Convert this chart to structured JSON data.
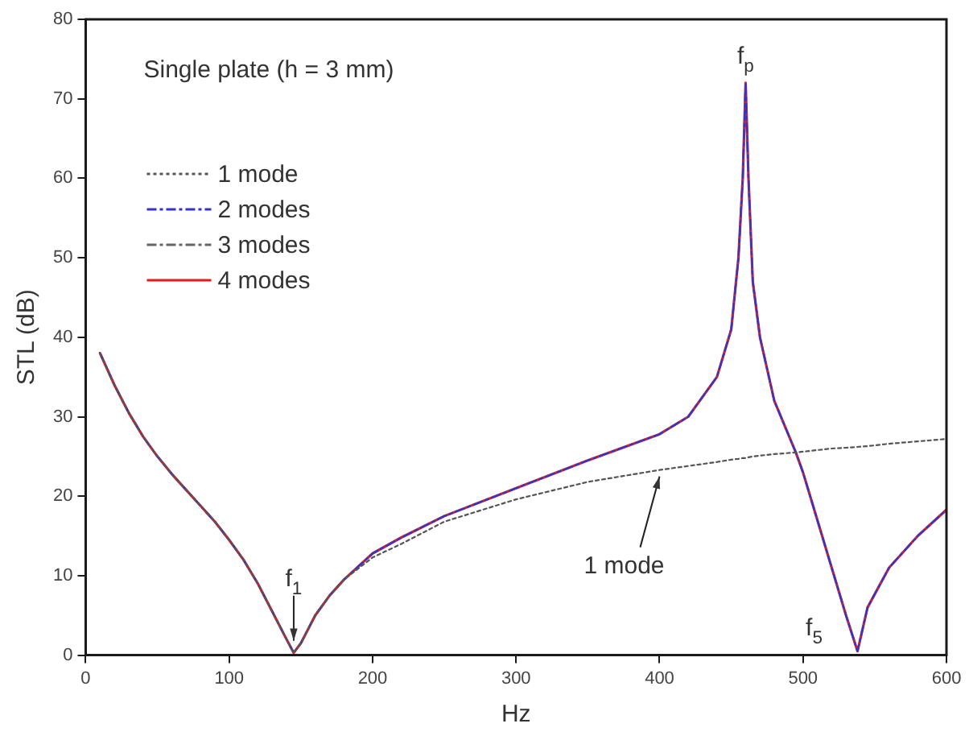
{
  "chart_data": {
    "type": "line",
    "xlabel": "Hz",
    "ylabel": "STL (dB)",
    "x": [
      10,
      20,
      30,
      40,
      50,
      60,
      70,
      80,
      90,
      100,
      110,
      120,
      130,
      140,
      145,
      150,
      160,
      170,
      180,
      200,
      220,
      250,
      300,
      350,
      400,
      420,
      440,
      450,
      455,
      458,
      460,
      462,
      465,
      470,
      480,
      495,
      500,
      510,
      520,
      530,
      538,
      545,
      560,
      580,
      600
    ],
    "series": [
      {
        "name": "1 mode",
        "color": "#555555",
        "line_style": "dotted",
        "values": [
          38,
          34,
          30.5,
          27.5,
          25,
          22.8,
          20.8,
          18.8,
          16.8,
          14.5,
          12,
          9,
          5.5,
          2,
          0.3,
          1.5,
          5,
          7.5,
          9.5,
          12.3,
          14,
          16.8,
          19.6,
          21.8,
          23.3,
          23.8,
          24.3,
          24.6,
          24.7,
          24.8,
          24.8,
          24.9,
          25,
          25.1,
          25.3,
          25.5,
          25.6,
          25.8,
          26,
          26.1,
          26.2,
          26.3,
          26.6,
          26.9,
          27.2
        ]
      },
      {
        "name": "2 modes",
        "color": "#3333cc",
        "line_style": "dashed",
        "values": [
          38,
          34,
          30.5,
          27.5,
          25,
          22.8,
          20.8,
          18.8,
          16.8,
          14.5,
          12,
          9,
          5.5,
          2,
          0.3,
          1.5,
          5,
          7.5,
          9.5,
          12.8,
          14.8,
          17.5,
          21,
          24.5,
          27.8,
          30,
          35,
          41,
          50,
          60,
          72,
          60,
          47,
          40,
          32,
          25.5,
          23,
          17,
          11,
          5,
          0.5,
          6,
          11,
          15,
          18.3
        ]
      },
      {
        "name": "3 modes",
        "color": "#666666",
        "line_style": "dashed",
        "values": [
          38,
          34,
          30.5,
          27.5,
          25,
          22.8,
          20.8,
          18.8,
          16.8,
          14.5,
          12,
          9,
          5.5,
          2,
          0.3,
          1.5,
          5,
          7.5,
          9.5,
          12.8,
          14.8,
          17.5,
          21,
          24.5,
          27.8,
          30,
          35,
          41,
          50,
          60,
          72,
          60,
          47,
          40,
          32,
          25.5,
          23,
          17,
          11,
          5,
          0.5,
          6,
          11,
          15,
          18.3
        ]
      },
      {
        "name": "4 modes",
        "color": "#e8191c",
        "line_style": "solid",
        "values": [
          38,
          34,
          30.5,
          27.5,
          25,
          22.8,
          20.8,
          18.8,
          16.8,
          14.5,
          12,
          9,
          5.5,
          2,
          0.3,
          1.5,
          5,
          7.5,
          9.5,
          12.8,
          14.8,
          17.5,
          21,
          24.5,
          27.8,
          30,
          35,
          41,
          50,
          60,
          72,
          60,
          47,
          40,
          32,
          25.5,
          23,
          17,
          11,
          5,
          0.5,
          6,
          11,
          15,
          18.3
        ]
      }
    ],
    "xlim": [
      0,
      600
    ],
    "xticks": [
      0,
      100,
      200,
      300,
      400,
      500,
      600
    ],
    "ylim": [
      0,
      80
    ],
    "yticks": [
      0,
      10,
      20,
      30,
      40,
      50,
      60,
      70,
      80
    ],
    "grid": false,
    "legend": "top left",
    "marker": "none",
    "annotations": [
      "Single plate (h = 3 mm)",
      {
        "text": "f$_{p}$",
        "x": 460,
        "y": 72
      },
      {
        "text": "f$_{1}$",
        "x": 145,
        "y": 1
      },
      {
        "text": "1 mode",
        "x": 400,
        "y": 23.3
      },
      {
        "text": "f$_{5}$",
        "x": 538,
        "y": 0.5
      }
    ]
  }
}
